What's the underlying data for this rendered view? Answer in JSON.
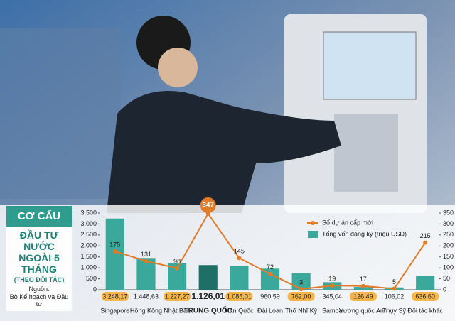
{
  "chart_data": {
    "type": "bar",
    "categories": [
      "Singapore",
      "Hồng Kông",
      "Nhật Bản",
      "TRUNG QUỐC",
      "Hàn Quốc",
      "Đài Loan",
      "Thổ Nhĩ Kỳ",
      "Samoa",
      "Vương quốc Anh",
      "Thụy Sỹ",
      "Đối tác khác"
    ],
    "series": [
      {
        "name": "Số dự án cấp mới",
        "type": "line",
        "axis": "y2",
        "color": "#e07b2a",
        "values": [
          175,
          131,
          98,
          347,
          145,
          72,
          3,
          19,
          17,
          5,
          215
        ]
      },
      {
        "name": "Tổng vốn đăng ký (triệu USD)",
        "type": "bar",
        "color": "#3aa89a",
        "values": [
          3248.17,
          1448.63,
          1227.27,
          1126.01,
          1085.01,
          960.59,
          762.0,
          345.04,
          126.49,
          106.02,
          636.6
        ],
        "value_labels": [
          "3.248,17",
          "1.448,63",
          "1.227,27",
          "1.126,01",
          "1.085,01",
          "960,59",
          "762,00",
          "345,04",
          "126,49",
          "106,02",
          "636,60"
        ]
      }
    ],
    "ylim": [
      0,
      3500
    ],
    "yticks": [
      0,
      500,
      {
        "value": 1000,
        "label": "1.000"
      },
      {
        "value": 1500,
        "label": "1.500"
      },
      {
        "value": 2000,
        "label": "2.000"
      },
      {
        "value": 2500,
        "label": "2.500"
      },
      {
        "value": 3000,
        "label": "3.000"
      },
      {
        "value": 3500,
        "label": "3.500"
      }
    ],
    "y2lim": [
      0,
      350
    ],
    "y2ticks": [
      0,
      50,
      100,
      150,
      200,
      250,
      300,
      350
    ]
  },
  "panel": {
    "heading": "CƠ CẤU",
    "title": "ĐẦU TƯ NƯỚC NGOÀI 5 THÁNG",
    "subtitle": "(THEO ĐỐI TÁC)",
    "source_label": "Nguồn:",
    "source": "Bộ Kế hoạch và Đầu tư"
  }
}
